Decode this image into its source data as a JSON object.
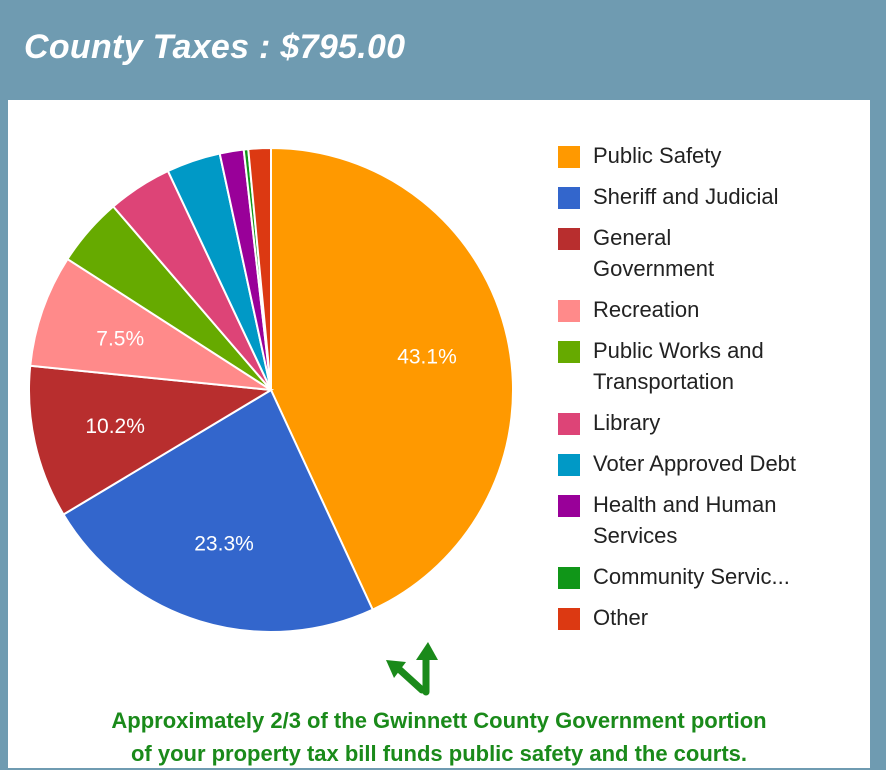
{
  "header": {
    "title": "County Taxes : $795.00"
  },
  "chart_data": {
    "type": "pie",
    "slices": [
      {
        "name": "Public Safety",
        "value": 43.1,
        "label": "43.1%",
        "color": "#ff9900"
      },
      {
        "name": "Sheriff and Judicial",
        "value": 23.3,
        "label": "23.3%",
        "color": "#3366cc"
      },
      {
        "name": "General Government",
        "value": 10.2,
        "label": "10.2%",
        "color": "#b82e2e"
      },
      {
        "name": "Recreation",
        "value": 7.5,
        "label": "7.5%",
        "color": "#ff8a8a"
      },
      {
        "name": "Public Works and Transportation",
        "value": 4.6,
        "label": "",
        "color": "#66aa00"
      },
      {
        "name": "Library",
        "value": 4.3,
        "label": "",
        "color": "#dd4477"
      },
      {
        "name": "Voter Approved Debt",
        "value": 3.6,
        "label": "",
        "color": "#0099c6"
      },
      {
        "name": "Health and Human Services",
        "value": 1.6,
        "label": "",
        "color": "#990099"
      },
      {
        "name": "Community Servic...",
        "value": 0.3,
        "label": "",
        "color": "#109618"
      },
      {
        "name": "Other",
        "value": 1.5,
        "label": "",
        "color": "#dc3912"
      }
    ],
    "legend_position": "right"
  },
  "caption": {
    "line1": "Approximately 2/3 of the Gwinnett County Government portion",
    "line2": "of your property tax bill funds public safety and the courts."
  },
  "colors": {
    "header_bg": "#6f9bb1",
    "caption_text": "#1a8a1a",
    "arrow": "#1a8a1a"
  },
  "icons": {
    "arrow": "split-arrow-icon"
  }
}
